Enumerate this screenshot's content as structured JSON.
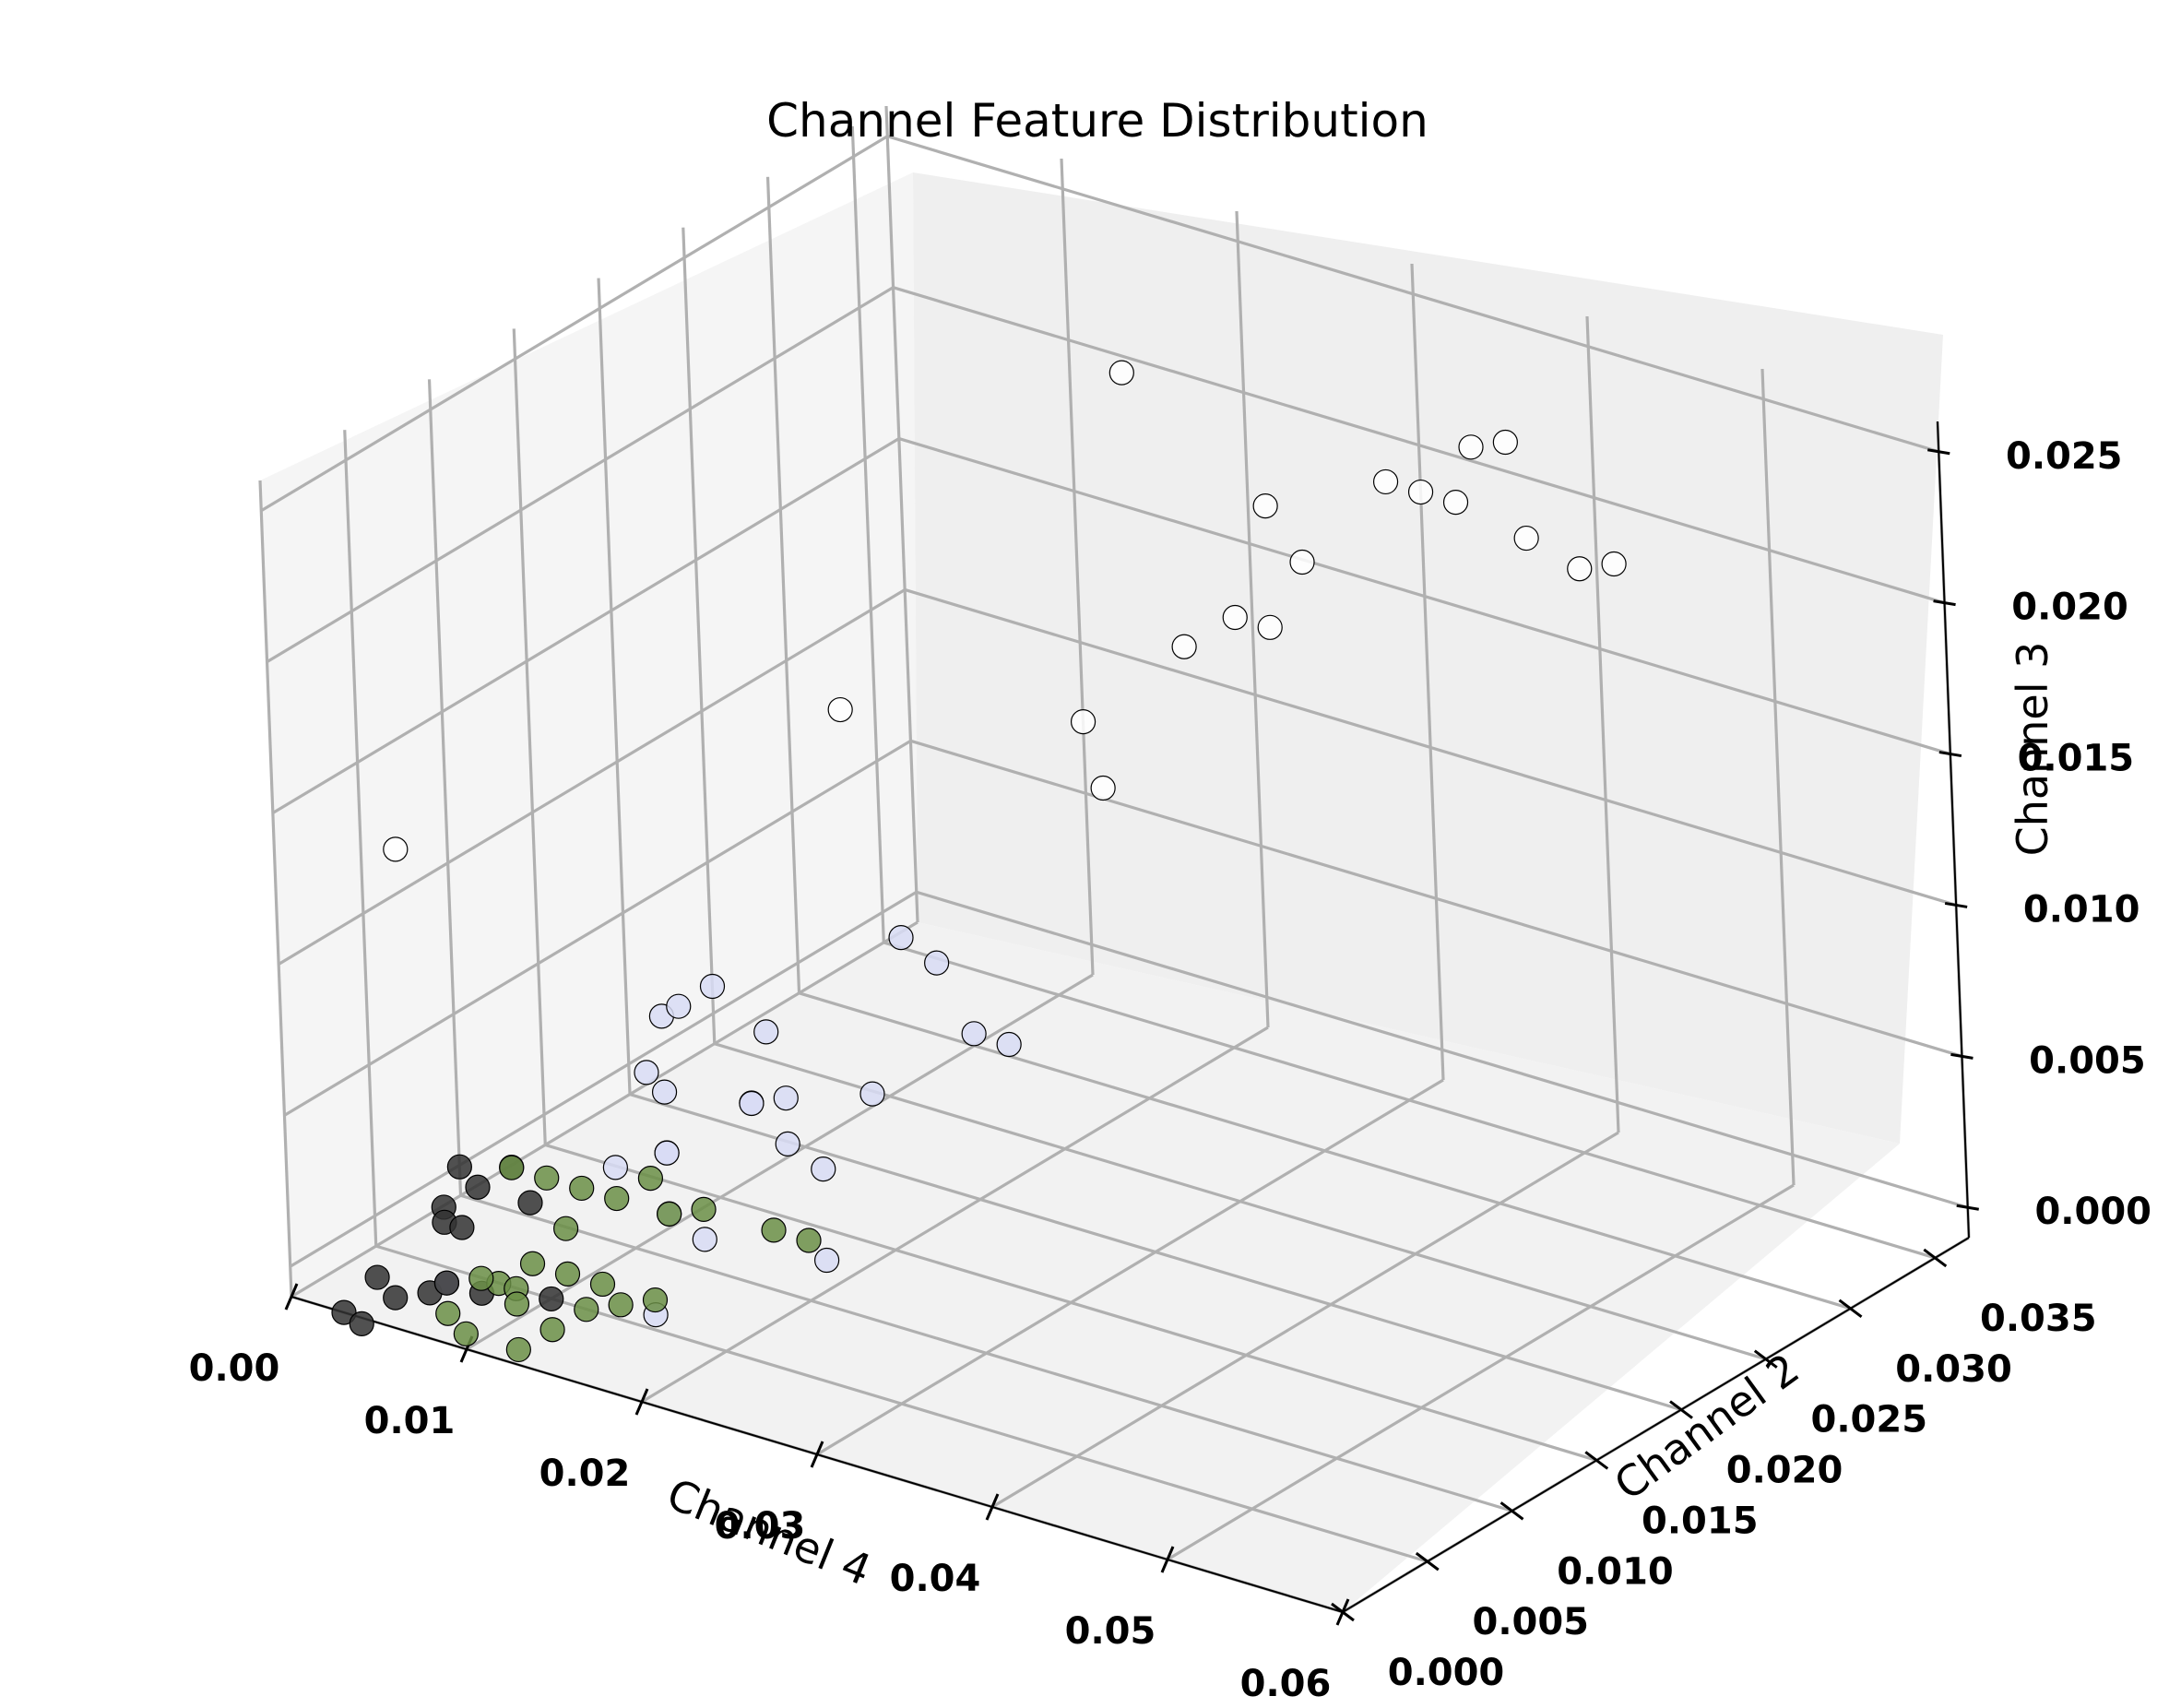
{
  "chart_data": {
    "type": "scatter",
    "title": "Channel Feature Distribution",
    "xlabel": "Channel 4",
    "ylabel": "Channel 2",
    "zlabel": "Channel 3",
    "xlim": [
      0,
      0.06
    ],
    "ylim": [
      0,
      0.037
    ],
    "zlim": [
      -0.001,
      0.026
    ],
    "x_ticks": [
      "0.00",
      "0.01",
      "0.02",
      "0.03",
      "0.04",
      "0.05",
      "0.06"
    ],
    "y_ticks": [
      "0.000",
      "0.005",
      "0.010",
      "0.015",
      "0.020",
      "0.025",
      "0.030",
      "0.035"
    ],
    "z_ticks": [
      "0.000",
      "0.005",
      "0.010",
      "0.015",
      "0.020",
      "0.025"
    ],
    "grid": true,
    "series": [
      {
        "color": "#ffffff",
        "points": [
          [
            0.03,
            0.028,
            0.021
          ],
          [
            0.035,
            0.03,
            0.022
          ],
          [
            0.033,
            0.027,
            0.02
          ],
          [
            0.038,
            0.032,
            0.023
          ],
          [
            0.036,
            0.031,
            0.0215
          ],
          [
            0.032,
            0.026,
            0.018
          ],
          [
            0.04,
            0.033,
            0.02
          ],
          [
            0.042,
            0.034,
            0.019
          ],
          [
            0.028,
            0.025,
            0.017
          ],
          [
            0.025,
            0.022,
            0.015
          ],
          [
            0.02,
            0.03,
            0.023
          ],
          [
            0.015,
            0.018,
            0.015
          ],
          [
            0.005,
            0.002,
            0.014
          ],
          [
            0.028,
            0.02,
            0.014
          ],
          [
            0.039,
            0.033,
            0.023
          ],
          [
            0.037,
            0.032,
            0.021
          ],
          [
            0.032,
            0.024,
            0.019
          ],
          [
            0.043,
            0.035,
            0.019
          ]
        ]
      },
      {
        "color": "#d8dcf5",
        "points": [
          [
            0.01,
            0.012,
            0.006
          ],
          [
            0.012,
            0.013,
            0.007
          ],
          [
            0.011,
            0.012,
            0.0065
          ],
          [
            0.013,
            0.015,
            0.005
          ],
          [
            0.015,
            0.012,
            0.004
          ],
          [
            0.016,
            0.013,
            0.004
          ],
          [
            0.018,
            0.011,
            0.0035
          ],
          [
            0.02,
            0.014,
            0.0045
          ],
          [
            0.012,
            0.01,
            0.0025
          ],
          [
            0.013,
            0.009,
            0.003
          ],
          [
            0.01,
            0.009,
            0.002
          ],
          [
            0.014,
            0.008,
            0.0015
          ],
          [
            0.02,
            0.016,
            0.009
          ],
          [
            0.021,
            0.017,
            0.008
          ],
          [
            0.022,
            0.018,
            0.0055
          ],
          [
            0.025,
            0.017,
            0.006
          ],
          [
            0.018,
            0.013,
            0.002
          ],
          [
            0.016,
            0.008,
            0.001
          ],
          [
            0.015,
            0.006,
            -0.001
          ],
          [
            0.02,
            0.011,
            0.0
          ],
          [
            0.007,
            0.002,
            0.0
          ],
          [
            0.013,
            0.008,
            0.006
          ],
          [
            0.011,
            0.011,
            0.004
          ],
          [
            0.017,
            0.01,
            0.005
          ]
        ]
      },
      {
        "color": "#6b8f47",
        "points": [
          [
            0.01,
            0.003,
            0.004
          ],
          [
            0.011,
            0.004,
            0.0035
          ],
          [
            0.012,
            0.005,
            0.003
          ],
          [
            0.013,
            0.006,
            0.0025
          ],
          [
            0.015,
            0.007,
            0.002
          ],
          [
            0.02,
            0.008,
            0.002
          ],
          [
            0.021,
            0.009,
            0.0015
          ],
          [
            0.012,
            0.004,
            0.002
          ],
          [
            0.011,
            0.003,
            0.001
          ],
          [
            0.012,
            0.004,
            0.0005
          ],
          [
            0.013,
            0.005,
            0.0
          ],
          [
            0.01,
            0.003,
            0.0
          ],
          [
            0.011,
            0.002,
            0.0
          ],
          [
            0.009,
            0.002,
            0.0005
          ],
          [
            0.013,
            0.002,
            -0.0005
          ],
          [
            0.015,
            0.004,
            0.0
          ],
          [
            0.016,
            0.005,
            0.0
          ],
          [
            0.013,
            0.004,
            -0.0005
          ],
          [
            0.009,
            0.001,
            -0.001
          ],
          [
            0.012,
            0.001,
            -0.001
          ],
          [
            0.008,
            0.001,
            -0.0005
          ],
          [
            0.009,
            0.003,
            0.0
          ],
          [
            0.013,
            0.008,
            0.0025
          ],
          [
            0.017,
            0.007,
            0.0025
          ]
        ]
      },
      {
        "color": "#333333",
        "points": [
          [
            0.006,
            0.004,
            0.003
          ],
          [
            0.008,
            0.005,
            0.003
          ],
          [
            0.007,
            0.004,
            0.0025
          ],
          [
            0.006,
            0.003,
            0.002
          ],
          [
            0.007,
            0.003,
            0.0015
          ],
          [
            0.006,
            0.003,
            0.0015
          ],
          [
            0.009,
            0.005,
            0.002
          ],
          [
            0.004,
            0.001,
            0.0
          ],
          [
            0.005,
            0.001,
            -0.0005
          ],
          [
            0.006,
            0.002,
            -0.0005
          ],
          [
            0.007,
            0.002,
            0.0
          ],
          [
            0.008,
            0.003,
            -0.0005
          ],
          [
            0.003,
            0.0,
            -0.001
          ],
          [
            0.004,
            0.0,
            -0.0012
          ],
          [
            0.011,
            0.004,
            -0.0005
          ]
        ]
      }
    ]
  }
}
